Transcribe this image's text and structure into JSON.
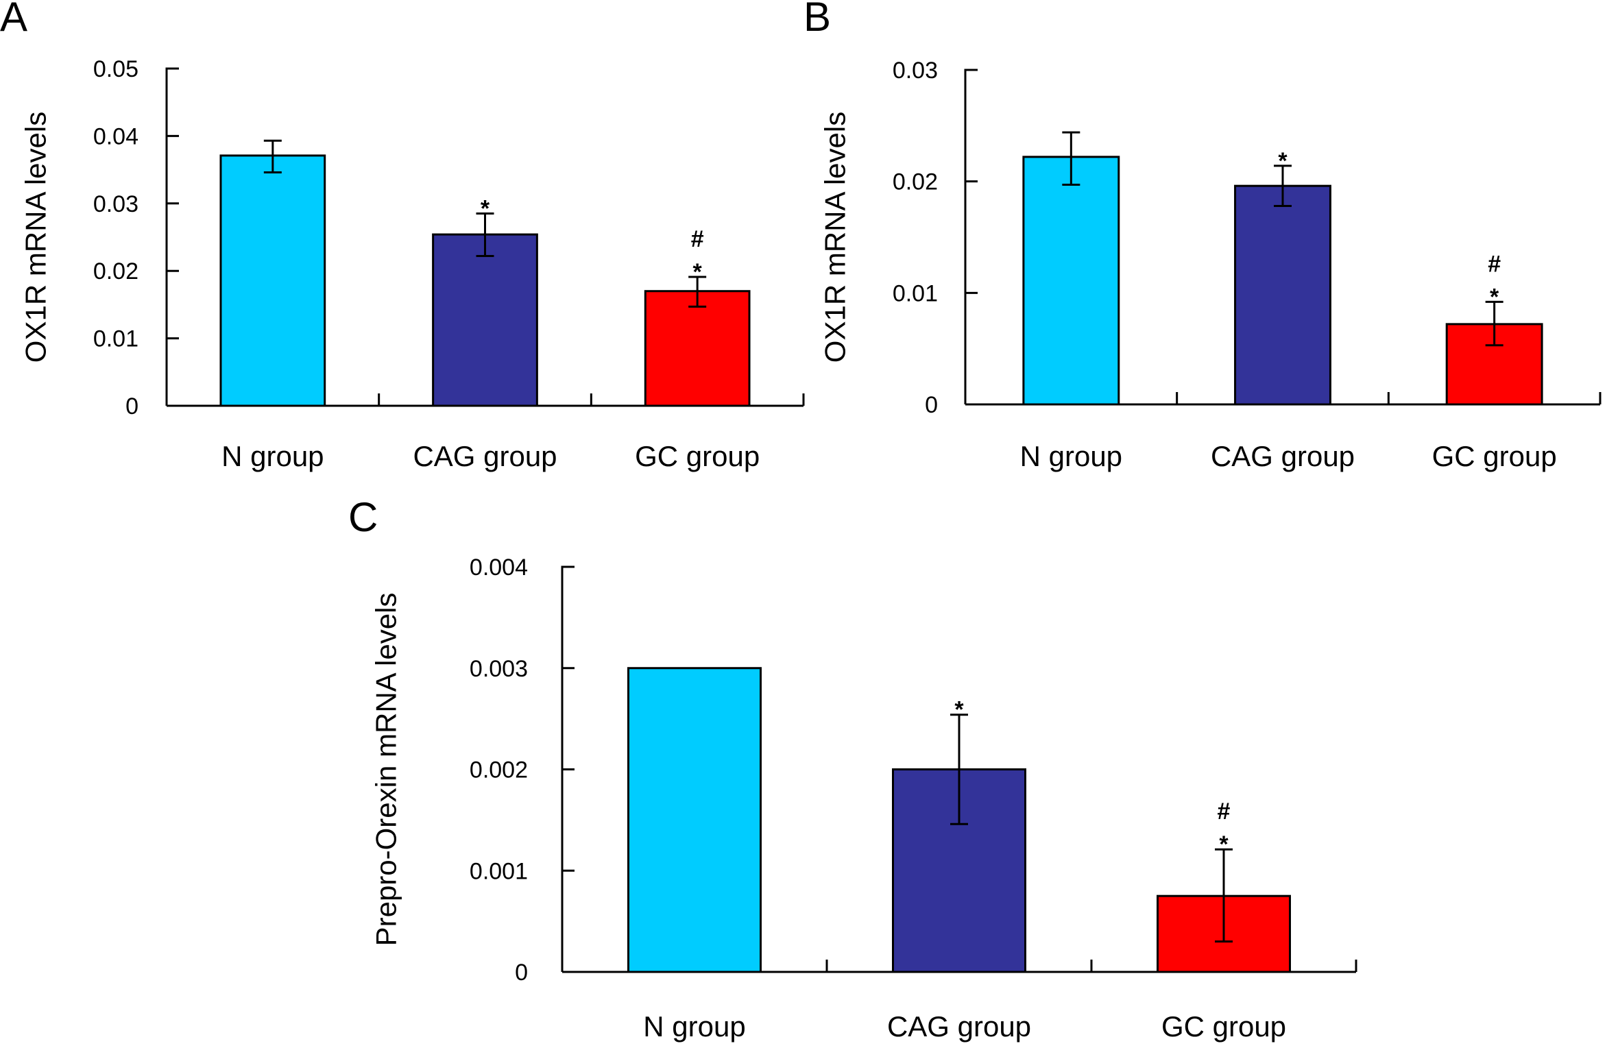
{
  "colors": {
    "n_group": "#00CCFF",
    "cag_group": "#333399",
    "gc_group": "#FF0000",
    "axis": "#000000",
    "outline": "#000000"
  },
  "chart_data": [
    {
      "panel": "A",
      "type": "bar",
      "title": "",
      "xlabel": "",
      "ylabel": "OX1R mRNA levels",
      "ylim": [
        0,
        0.05
      ],
      "yticks": [
        "0",
        "0.01",
        "0.02",
        "0.03",
        "0.04",
        "0.05"
      ],
      "ytick_values": [
        0,
        0.01,
        0.02,
        0.03,
        0.04,
        0.05
      ],
      "grid": false,
      "categories": [
        "N group",
        "CAG group",
        "GC group"
      ],
      "values": [
        0.0371,
        0.0254,
        0.017
      ],
      "error_upper": [
        0.0393,
        0.0285,
        0.0191
      ],
      "error_lower": [
        0.0346,
        0.0222,
        0.0147
      ],
      "annotations": [
        "",
        "*",
        "*\n#"
      ],
      "bar_colors": [
        "#00CCFF",
        "#333399",
        "#FF0000"
      ]
    },
    {
      "panel": "B",
      "type": "bar",
      "title": "",
      "xlabel": "",
      "ylabel": "OX1R mRNA levels",
      "ylim": [
        0,
        0.03
      ],
      "yticks": [
        "0",
        "0.01",
        "0.02",
        "0.03"
      ],
      "ytick_values": [
        0,
        0.01,
        0.02,
        0.03
      ],
      "grid": false,
      "categories": [
        "N group",
        "CAG group",
        "GC group"
      ],
      "values": [
        0.0222,
        0.0196,
        0.0072
      ],
      "error_upper": [
        0.0244,
        0.0214,
        0.0092
      ],
      "error_lower": [
        0.0197,
        0.0178,
        0.0053
      ],
      "annotations": [
        "",
        "*",
        "*\n#"
      ],
      "bar_colors": [
        "#00CCFF",
        "#333399",
        "#FF0000"
      ]
    },
    {
      "panel": "C",
      "type": "bar",
      "title": "",
      "xlabel": "",
      "ylabel": "Prepro-Orexin mRNA levels",
      "ylim": [
        0,
        0.004
      ],
      "yticks": [
        "0",
        "0.001",
        "0.002",
        "0.003",
        "0.004"
      ],
      "ytick_values": [
        0,
        0.001,
        0.002,
        0.003,
        0.004
      ],
      "grid": false,
      "categories": [
        "N group",
        "CAG group",
        "GC group"
      ],
      "values": [
        0.003,
        0.002,
        0.00075
      ],
      "error_upper": [
        null,
        0.00254,
        0.00121
      ],
      "error_lower": [
        null,
        0.00146,
        0.0003
      ],
      "annotations": [
        "",
        "*",
        "*\n#"
      ],
      "bar_colors": [
        "#00CCFF",
        "#333399",
        "#FF0000"
      ]
    }
  ]
}
